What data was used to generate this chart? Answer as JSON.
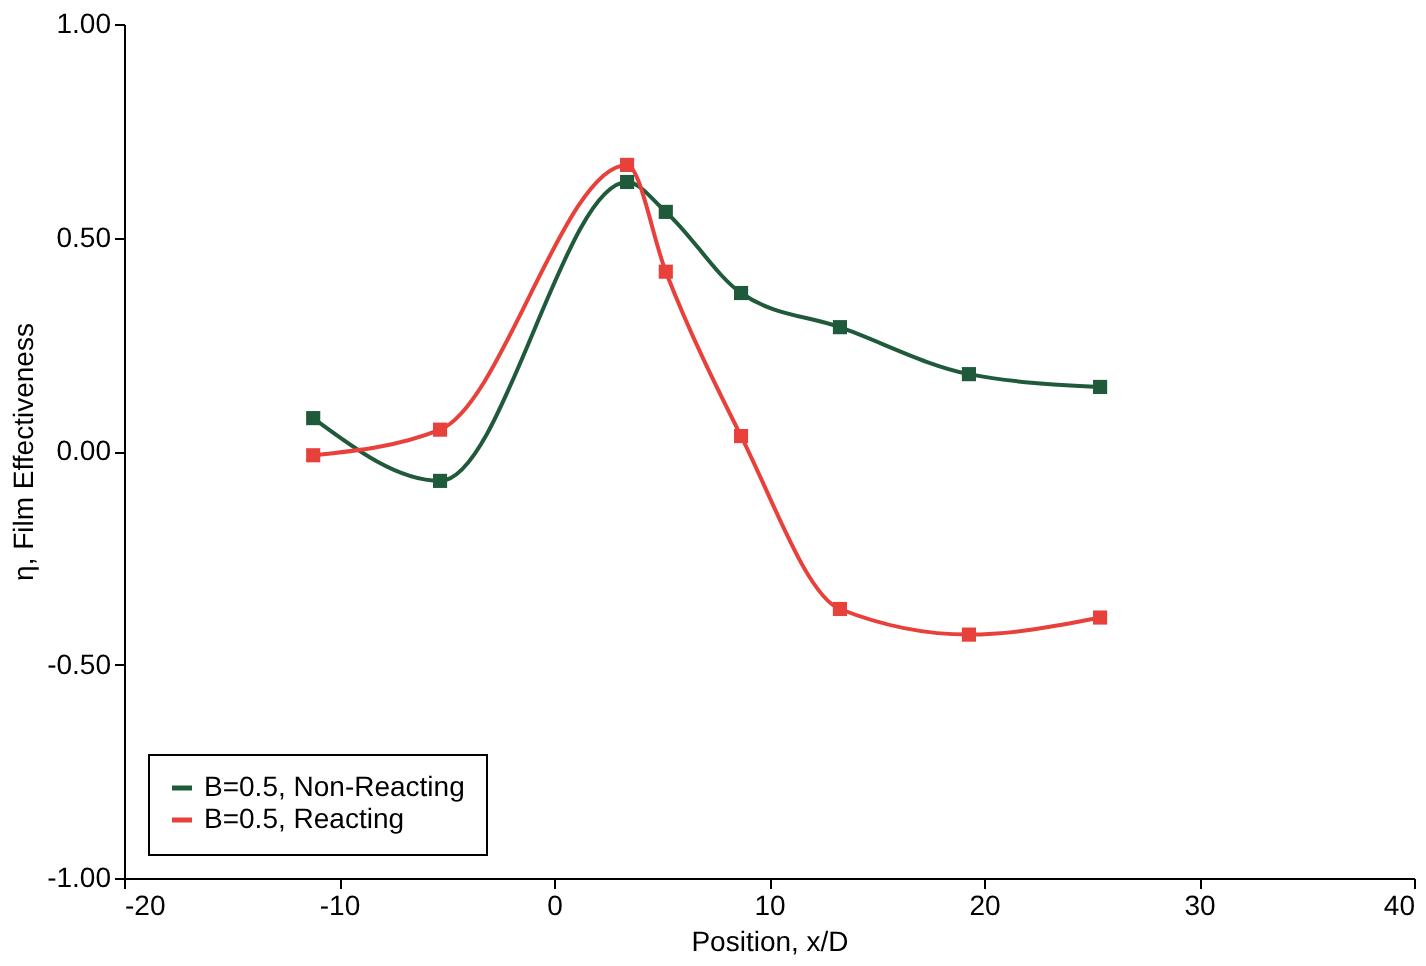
{
  "chart_data": {
    "type": "line",
    "xlabel": "Position, x/D",
    "ylabel": "η, Film Effectiveness",
    "x": [
      -11.2,
      -5.3,
      3.4,
      5.2,
      8.7,
      13.3,
      19.3,
      25.4
    ],
    "series": [
      {
        "name": "B=0.5, Non-Reacting",
        "color": "#1f5a3a",
        "values": [
          0.077,
          -0.07,
          0.63,
          0.56,
          0.37,
          0.29,
          0.18,
          0.15
        ]
      },
      {
        "name": "B=0.5, Reacting",
        "color": "#e8413c",
        "values": [
          -0.01,
          0.05,
          0.67,
          0.42,
          0.035,
          -0.37,
          -0.43,
          -0.39
        ]
      }
    ],
    "xlim": [
      -20,
      40
    ],
    "xticks": [
      -20,
      -10,
      0,
      10,
      20,
      30,
      40
    ],
    "ylim": [
      -1,
      1
    ],
    "yticks": [
      {
        "value": -1,
        "label": "-1.00"
      },
      {
        "value": -0.5,
        "label": "-0.50"
      },
      {
        "value": 0,
        "label": "0.00"
      },
      {
        "value": 0.5,
        "label": "0.50"
      },
      {
        "value": 1,
        "label": "1.00"
      }
    ],
    "marker": "square",
    "line_style": "solid",
    "grid": false,
    "legend": "bottom left"
  }
}
